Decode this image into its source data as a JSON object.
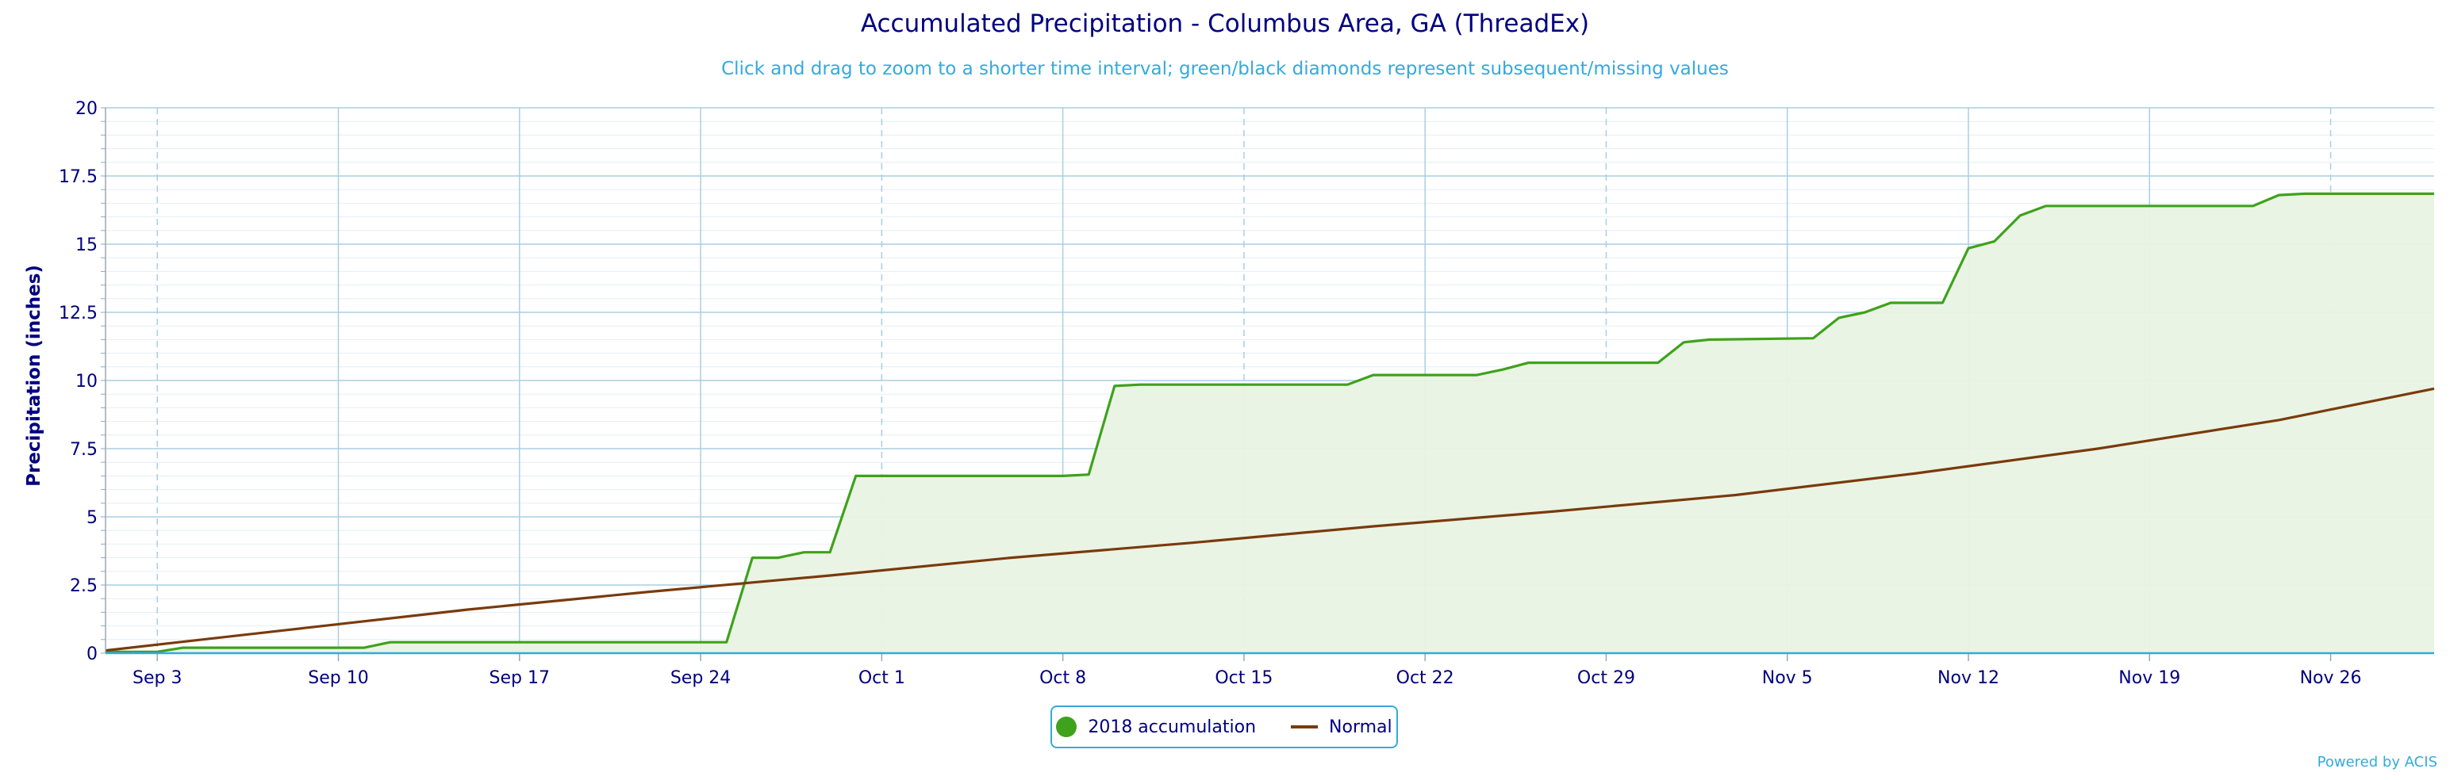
{
  "title": "Accumulated Precipitation - Columbus Area, GA (ThreadEx)",
  "subtitle": "Click and drag to zoom to a shorter time interval; green/black diamonds represent subsequent/missing values",
  "credit": "Powered by ACIS",
  "colors": {
    "accumulation_line": "#3ea21c",
    "accumulation_fill": "#e9f3e3",
    "normal_line": "#7a3a0c",
    "grid": "#a9cfe3",
    "axis_text": "#000080",
    "accent": "#33aadd"
  },
  "chart_data": {
    "type": "area",
    "ylabel": "Precipitation (inches)",
    "xlabel": "",
    "ylim": [
      0,
      20
    ],
    "xlim": [
      "2018-09-01",
      "2018-11-30"
    ],
    "y_ticks": [
      "0",
      "2.5",
      "5",
      "7.5",
      "10",
      "12.5",
      "15",
      "17.5",
      "20"
    ],
    "x_ticks": [
      "Sep 3",
      "Sep 10",
      "Sep 17",
      "Sep 24",
      "Oct 1",
      "Oct 8",
      "Oct 15",
      "Oct 22",
      "Oct 29",
      "Nov 5",
      "Nov 12",
      "Nov 19",
      "Nov 26"
    ],
    "grid": true,
    "legend_position": "bottom-center",
    "series": [
      {
        "name": "2018 accumulation",
        "points": [
          [
            "2018-09-01",
            0.05
          ],
          [
            "2018-09-02",
            0.05
          ],
          [
            "2018-09-03",
            0.05
          ],
          [
            "2018-09-04",
            0.2
          ],
          [
            "2018-09-11",
            0.2
          ],
          [
            "2018-09-12",
            0.4
          ],
          [
            "2018-09-25",
            0.4
          ],
          [
            "2018-09-26",
            3.5
          ],
          [
            "2018-09-27",
            3.5
          ],
          [
            "2018-09-28",
            3.7
          ],
          [
            "2018-09-29",
            3.7
          ],
          [
            "2018-09-30",
            6.5
          ],
          [
            "2018-10-08",
            6.5
          ],
          [
            "2018-10-09",
            6.55
          ],
          [
            "2018-10-10",
            9.8
          ],
          [
            "2018-10-11",
            9.85
          ],
          [
            "2018-10-19",
            9.85
          ],
          [
            "2018-10-20",
            10.2
          ],
          [
            "2018-10-24",
            10.2
          ],
          [
            "2018-10-25",
            10.4
          ],
          [
            "2018-10-26",
            10.65
          ],
          [
            "2018-10-31",
            10.65
          ],
          [
            "2018-11-01",
            11.4
          ],
          [
            "2018-11-02",
            11.5
          ],
          [
            "2018-11-06",
            11.55
          ],
          [
            "2018-11-07",
            12.3
          ],
          [
            "2018-11-08",
            12.5
          ],
          [
            "2018-11-09",
            12.85
          ],
          [
            "2018-11-11",
            12.85
          ],
          [
            "2018-11-12",
            14.85
          ],
          [
            "2018-11-13",
            15.1
          ],
          [
            "2018-11-14",
            16.05
          ],
          [
            "2018-11-15",
            16.4
          ],
          [
            "2018-11-23",
            16.4
          ],
          [
            "2018-11-24",
            16.8
          ],
          [
            "2018-11-25",
            16.85
          ],
          [
            "2018-11-30",
            16.85
          ]
        ]
      },
      {
        "name": "Normal",
        "points": [
          [
            "2018-09-01",
            0.1
          ],
          [
            "2018-09-08",
            0.85
          ],
          [
            "2018-09-15",
            1.6
          ],
          [
            "2018-09-22",
            2.25
          ],
          [
            "2018-09-29",
            2.85
          ],
          [
            "2018-10-06",
            3.5
          ],
          [
            "2018-10-13",
            4.05
          ],
          [
            "2018-10-20",
            4.65
          ],
          [
            "2018-10-27",
            5.2
          ],
          [
            "2018-11-03",
            5.8
          ],
          [
            "2018-11-10",
            6.6
          ],
          [
            "2018-11-17",
            7.5
          ],
          [
            "2018-11-24",
            8.55
          ],
          [
            "2018-11-30",
            9.7
          ]
        ]
      }
    ]
  }
}
